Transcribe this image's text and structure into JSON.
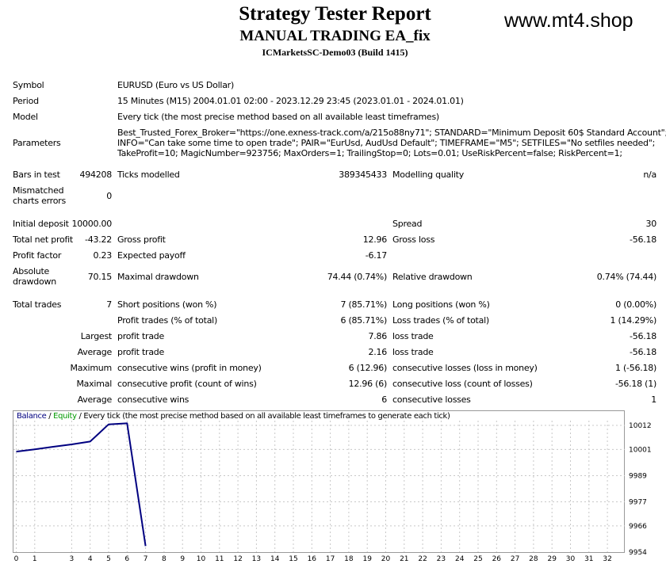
{
  "header": {
    "title": "Strategy Tester Report",
    "subtitle": "MANUAL TRADING EA_fix",
    "server": "ICMarketsSC-Demo03 (Build 1415)",
    "watermark": "www.mt4.shop"
  },
  "settings": {
    "symbol_label": "Symbol",
    "symbol_value": "EURUSD (Euro vs US Dollar)",
    "period_label": "Period",
    "period_value": "15 Minutes (M15) 2004.01.01 02:00 - 2023.12.29 23:45 (2023.01.01 - 2024.01.01)",
    "model_label": "Model",
    "model_value": "Every tick (the most precise method based on all available least timeframes)",
    "parameters_label": "Parameters",
    "parameters_line1": "Best_Trusted_Forex_Broker=\"https://one.exness-track.com/a/215o88ny71\"; STANDARD=\"Minimum Deposit 60$ Standard Account\";",
    "parameters_line2": "INFO=\"Can take some time to open trade\"; PAIR=\"EurUsd, AudUsd Default\"; TIMEFRAME=\"M5\"; SETFILES=\"No setfiles needed\";",
    "parameters_line3": "TakeProfit=10; MagicNumber=923756; MaxOrders=1; TrailingStop=0; Lots=0.01; UseRiskPercent=false; RiskPercent=1;"
  },
  "quality": {
    "bars_label": "Bars in test",
    "bars_value": "494208",
    "ticks_label": "Ticks modelled",
    "ticks_value": "389345433",
    "modelling_label": "Modelling quality",
    "modelling_value": "n/a",
    "mismatch_label_1": "Mismatched",
    "mismatch_label_2": "charts errors",
    "mismatch_value": "0"
  },
  "results": {
    "initial_deposit_label": "Initial deposit",
    "initial_deposit_value": "10000.00",
    "spread_label": "Spread",
    "spread_value": "30",
    "total_net_profit_label": "Total net profit",
    "total_net_profit_value": "-43.22",
    "gross_profit_label": "Gross profit",
    "gross_profit_value": "12.96",
    "gross_loss_label": "Gross loss",
    "gross_loss_value": "-56.18",
    "profit_factor_label": "Profit factor",
    "profit_factor_value": "0.23",
    "expected_payoff_label": "Expected payoff",
    "expected_payoff_value": "-6.17",
    "absolute_drawdown_label_1": "Absolute",
    "absolute_drawdown_label_2": "drawdown",
    "absolute_drawdown_value": "70.15",
    "maximal_drawdown_label": "Maximal drawdown",
    "maximal_drawdown_value": "74.44 (0.74%)",
    "relative_drawdown_label": "Relative drawdown",
    "relative_drawdown_value": "0.74% (74.44)"
  },
  "trades": {
    "total_trades_label": "Total trades",
    "total_trades_value": "7",
    "short_label": "Short positions (won %)",
    "short_value": "7 (85.71%)",
    "long_label": "Long positions (won %)",
    "long_value": "0 (0.00%)",
    "profit_trades_label": "Profit trades (% of total)",
    "profit_trades_value": "6 (85.71%)",
    "loss_trades_label": "Loss trades (% of total)",
    "loss_trades_value": "1 (14.29%)",
    "largest_label": "Largest",
    "largest_profit_label": "profit trade",
    "largest_profit_value": "7.86",
    "largest_loss_label": "loss trade",
    "largest_loss_value": "-56.18",
    "average_label": "Average",
    "average_profit_label": "profit trade",
    "average_profit_value": "2.16",
    "average_loss_label": "loss trade",
    "average_loss_value": "-56.18",
    "maximum_label": "Maximum",
    "max_cons_wins_label": "consecutive wins (profit in money)",
    "max_cons_wins_value": "6 (12.96)",
    "max_cons_losses_label": "consecutive losses (loss in money)",
    "max_cons_losses_value": "1 (-56.18)",
    "maximal_label": "Maximal",
    "maximal_cons_profit_label": "consecutive profit (count of wins)",
    "maximal_cons_profit_value": "12.96 (6)",
    "maximal_cons_loss_label": "consecutive loss (count of losses)",
    "maximal_cons_loss_value": "-56.18 (1)",
    "average2_label": "Average",
    "avg_cons_wins_label": "consecutive wins",
    "avg_cons_wins_value": "6",
    "avg_cons_losses_label": "consecutive losses",
    "avg_cons_losses_value": "1"
  },
  "chart_data": {
    "type": "line",
    "legend": {
      "balance": "Balance",
      "sep1": " / ",
      "equity": "Equity",
      "sep2": " / ",
      "desc": "Every tick (the most precise method based on all available least timeframes to generate each tick)"
    },
    "x_ticks": [
      0,
      1,
      3,
      4,
      5,
      6,
      7,
      8,
      9,
      10,
      11,
      12,
      13,
      14,
      15,
      16,
      17,
      18,
      19,
      20,
      21,
      22,
      23,
      24,
      25,
      26,
      27,
      28,
      29,
      30,
      31,
      32
    ],
    "y_ticks": [
      10012,
      10001,
      9989,
      9977,
      9966,
      9954
    ],
    "series": [
      {
        "x": [
          0,
          1,
          2,
          3,
          4,
          5,
          6,
          7
        ],
        "y": [
          10000.0,
          10001.0,
          10002.2,
          10003.3,
          10004.6,
          10012.46,
          10012.96,
          9956.78
        ]
      }
    ],
    "line_color": "#000080",
    "grid": true
  }
}
